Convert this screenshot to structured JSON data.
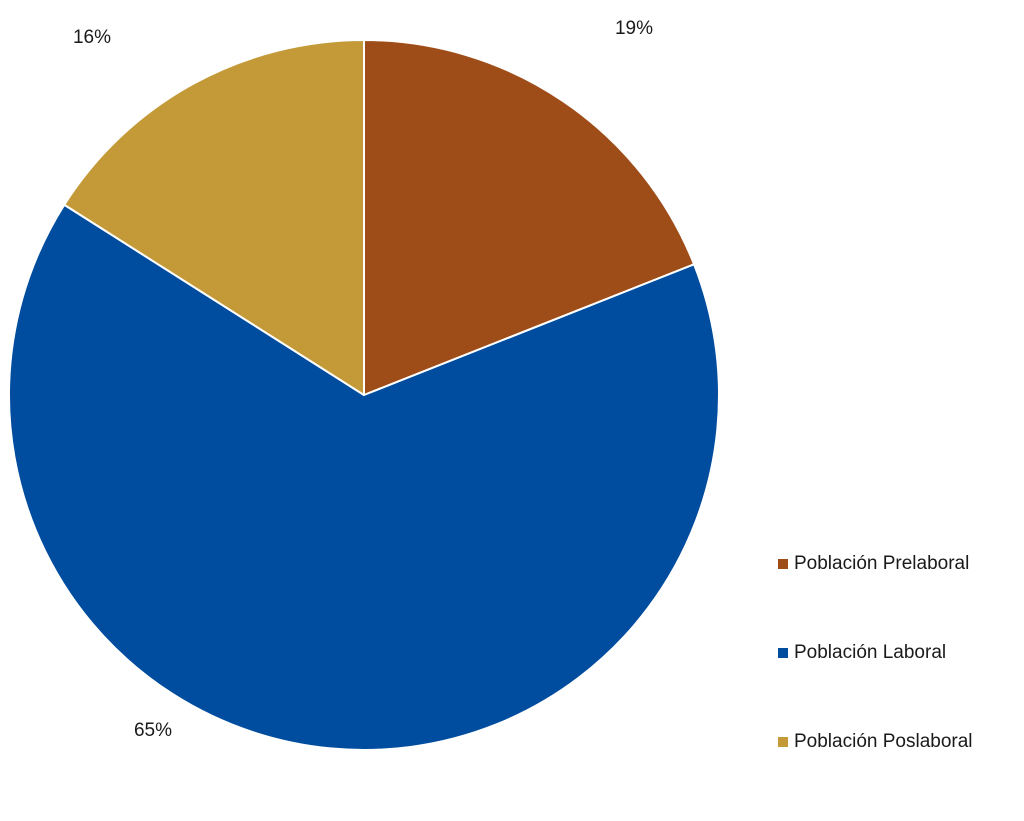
{
  "chart_data": {
    "type": "pie",
    "categories": [
      "Población Prelaboral",
      "Población Laboral",
      "Población Poslaboral"
    ],
    "values": [
      19,
      65,
      16
    ],
    "data_labels": [
      "19%",
      "65%",
      "16%"
    ],
    "colors": [
      "#9E4C18",
      "#004C9E",
      "#C39A37"
    ],
    "start_angle_deg": 0,
    "direction": "clockwise",
    "legend_position": "bottom-right"
  }
}
